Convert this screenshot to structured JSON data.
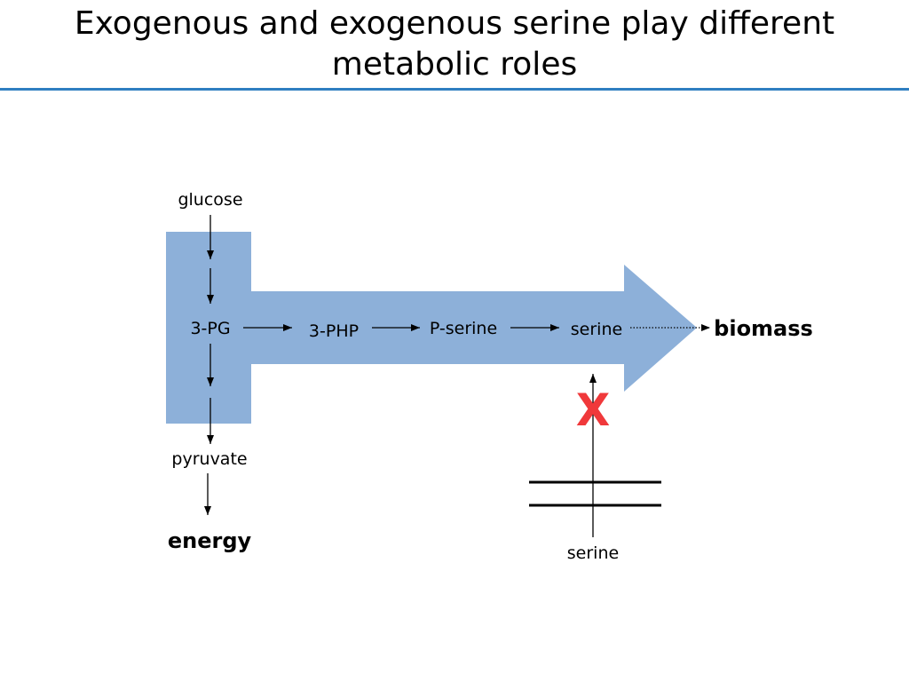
{
  "slide": {
    "title_line1": "Exogenous and exogenous serine play different",
    "title_line2": "metabolic roles",
    "accent_color": "#2f7fc1"
  },
  "diagram": {
    "pathway_color": "#8db0d9",
    "block_color": "#f0393b",
    "labels": {
      "glucose": "glucose",
      "pg3": "3-PG",
      "php3": "3-PHP",
      "pserine": "P-serine",
      "serine_internal": "serine",
      "biomass": "biomass",
      "pyruvate": "pyruvate",
      "energy": "energy",
      "serine_external": "serine",
      "block_mark": "X"
    }
  }
}
